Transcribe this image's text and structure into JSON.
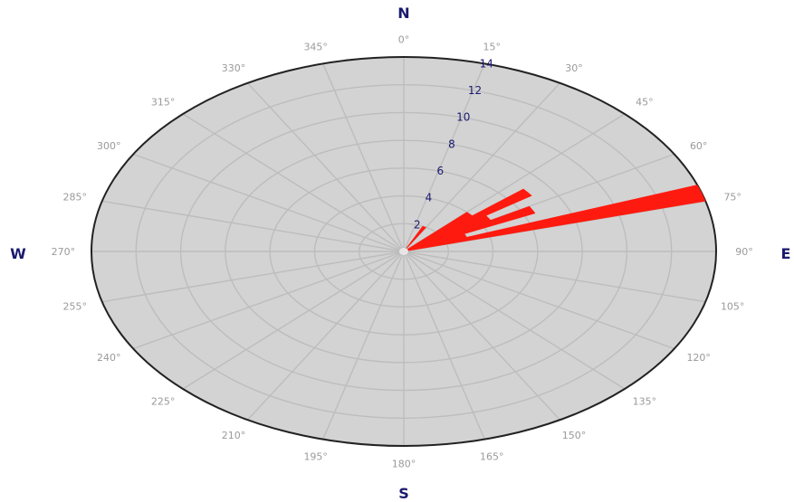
{
  "chart_data": {
    "type": "polar-bar",
    "cardinals": {
      "n": "N",
      "e": "E",
      "s": "S",
      "w": "W"
    },
    "angle_labels": [
      "0°",
      "15°",
      "30°",
      "45°",
      "60°",
      "75°",
      "90°",
      "105°",
      "120°",
      "135°",
      "150°",
      "165°",
      "180°",
      "195°",
      "210°",
      "225°",
      "240°",
      "255°",
      "270°",
      "285°",
      "300°",
      "315°",
      "330°",
      "345°"
    ],
    "radial_ticks": [
      2,
      4,
      6,
      8,
      10,
      12,
      14
    ],
    "radial_max": 14,
    "bin_width_deg": 5,
    "bars": [
      {
        "direction": 27.5,
        "value": 2
      },
      {
        "direction": 47.5,
        "value": 4
      },
      {
        "direction": 52.5,
        "value": 7
      },
      {
        "direction": 57.5,
        "value": 4.5
      },
      {
        "direction": 62.5,
        "value": 6.5
      },
      {
        "direction": 67.5,
        "value": 3
      },
      {
        "direction": 72.5,
        "value": 14
      }
    ],
    "colors": {
      "bar": "#ff1a0f",
      "plot_bg": "#d3d3d3",
      "grid": "#bdbdbd",
      "border": "#222222"
    }
  }
}
